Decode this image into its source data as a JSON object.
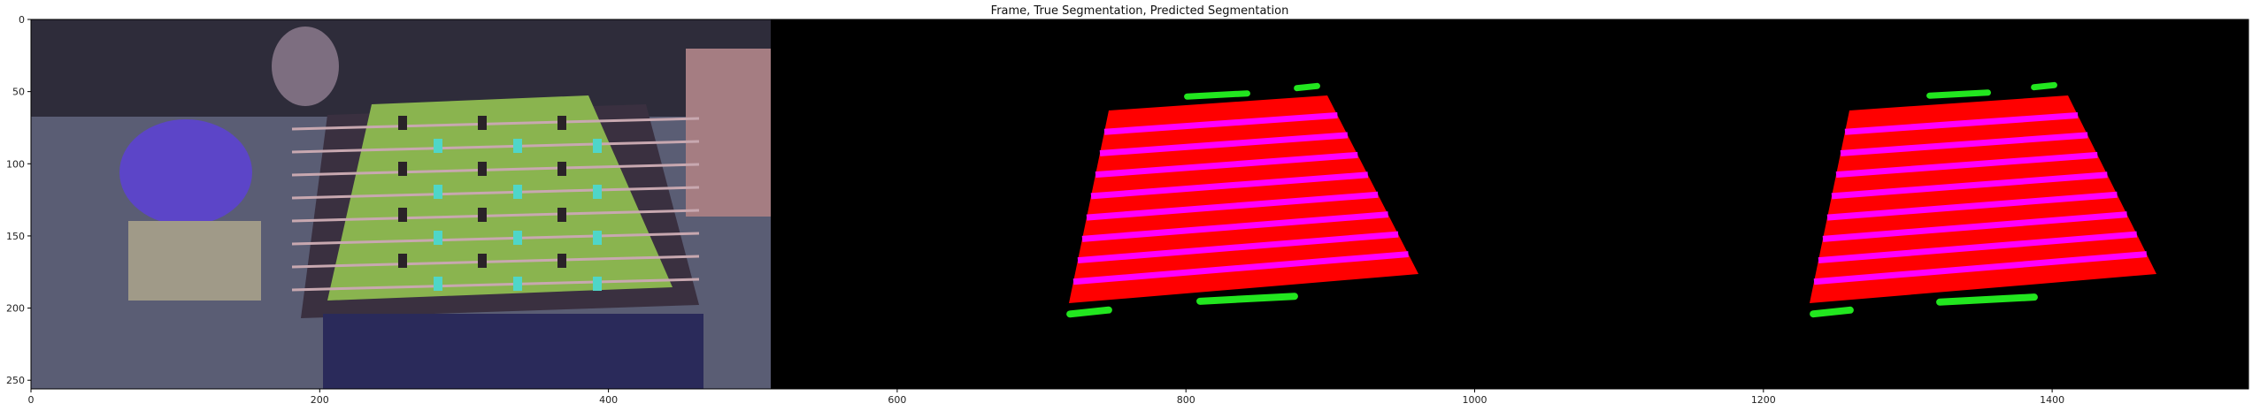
{
  "chart_data": {
    "type": "image",
    "title": "Frame, True Segmentation, Predicted Segmentation",
    "xlabel": "",
    "ylabel": "",
    "xlim": [
      0,
      1536
    ],
    "ylim": [
      256,
      0
    ],
    "x_ticks": [
      0,
      200,
      400,
      600,
      800,
      1000,
      1200,
      1400
    ],
    "y_ticks": [
      0,
      50,
      100,
      150,
      200,
      250
    ],
    "panels": [
      {
        "name": "Frame",
        "x_range": [
          0,
          512
        ]
      },
      {
        "name": "True Segmentation",
        "x_range": [
          512,
          1024
        ]
      },
      {
        "name": "Predicted Segmentation",
        "x_range": [
          1024,
          1536
        ]
      }
    ],
    "colors": {
      "background": "#000000",
      "table": "#ff0000",
      "stripes": "#ff00ff",
      "players": "#22e61f",
      "frame_floor": "#5a5d74",
      "frame_wall": "#2e2c3a",
      "field_green": "#8ab44f",
      "shirt": "#5c45c8",
      "figures": "#4fd6c8"
    }
  }
}
